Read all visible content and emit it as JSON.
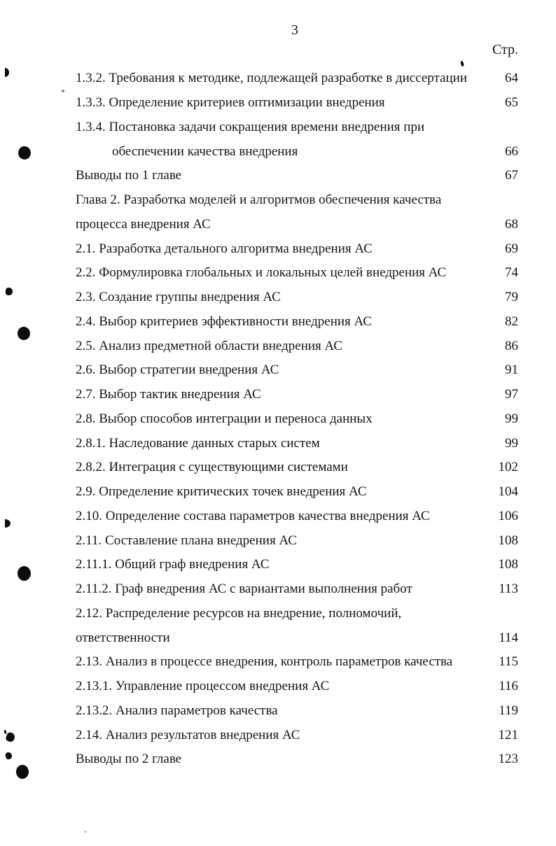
{
  "page": {
    "page_number": "3",
    "column_header": "Стр."
  },
  "toc": {
    "rows": [
      {
        "text": "1.3.2. Требования к методике, подлежащей разработке в диссертации",
        "page": "64",
        "indent": false
      },
      {
        "text": "1.3.3. Определение критериев оптимизации внедрения",
        "page": "65",
        "indent": false
      },
      {
        "text": "1.3.4. Постановка задачи сокращения времени внедрения при",
        "page": "",
        "indent": false
      },
      {
        "text": "обеспечении качества внедрения",
        "page": "66",
        "indent": true
      },
      {
        "text": "Выводы по 1 главе",
        "page": "67",
        "indent": false
      },
      {
        "text": "Глава 2. Разработка моделей и алгоритмов обеспечения качества",
        "page": "",
        "indent": false
      },
      {
        "text": "процесса внедрения АС",
        "page": "68",
        "indent": false
      },
      {
        "text": "2.1. Разработка детального алгоритма внедрения АС",
        "page": "69",
        "indent": false
      },
      {
        "text": "2.2. Формулировка глобальных и локальных целей внедрения АС",
        "page": "74",
        "indent": false
      },
      {
        "text": "2.3. Создание группы внедрения АС",
        "page": "79",
        "indent": false
      },
      {
        "text": "2.4. Выбор критериев эффективности внедрения АС",
        "page": "82",
        "indent": false
      },
      {
        "text": "2.5. Анализ предметной области внедрения АС",
        "page": "86",
        "indent": false
      },
      {
        "text": "2.6. Выбор стратегии внедрения АС",
        "page": "91",
        "indent": false
      },
      {
        "text": "2.7. Выбор тактик внедрения АС",
        "page": "97",
        "indent": false
      },
      {
        "text": "2.8. Выбор способов интеграции и переноса данных",
        "page": "99",
        "indent": false
      },
      {
        "text": "2.8.1. Наследование данных старых систем",
        "page": "99",
        "indent": false
      },
      {
        "text": "2.8.2. Интеграция с существующими системами",
        "page": "102",
        "indent": false
      },
      {
        "text": "2.9. Определение критических точек внедрения АС",
        "page": "104",
        "indent": false
      },
      {
        "text": "2.10. Определение состава параметров качества внедрения АС",
        "page": "106",
        "indent": false
      },
      {
        "text": "2.11. Составление плана внедрения АС",
        "page": "108",
        "indent": false
      },
      {
        "text": "2.11.1. Общий граф внедрения АС",
        "page": "108",
        "indent": false
      },
      {
        "text": "2.11.2. Граф внедрения АС с вариантами выполнения работ",
        "page": "113",
        "indent": false
      },
      {
        "text": "2.12. Распределение ресурсов на внедрение, полномочий,",
        "page": "",
        "indent": false
      },
      {
        "text": "ответственности",
        "page": "114",
        "indent": false
      },
      {
        "text": "2.13. Анализ в процессе внедрения, контроль параметров качества",
        "page": "115",
        "indent": false
      },
      {
        "text": "2.13.1. Управление процессом внедрения АС",
        "page": "116",
        "indent": false
      },
      {
        "text": "2.13.2. Анализ параметров качества",
        "page": "119",
        "indent": false
      },
      {
        "text": "2.14. Анализ результатов внедрения АС",
        "page": "121",
        "indent": false
      },
      {
        "text": "Выводы по 2 главе",
        "page": "123",
        "indent": false
      }
    ]
  }
}
